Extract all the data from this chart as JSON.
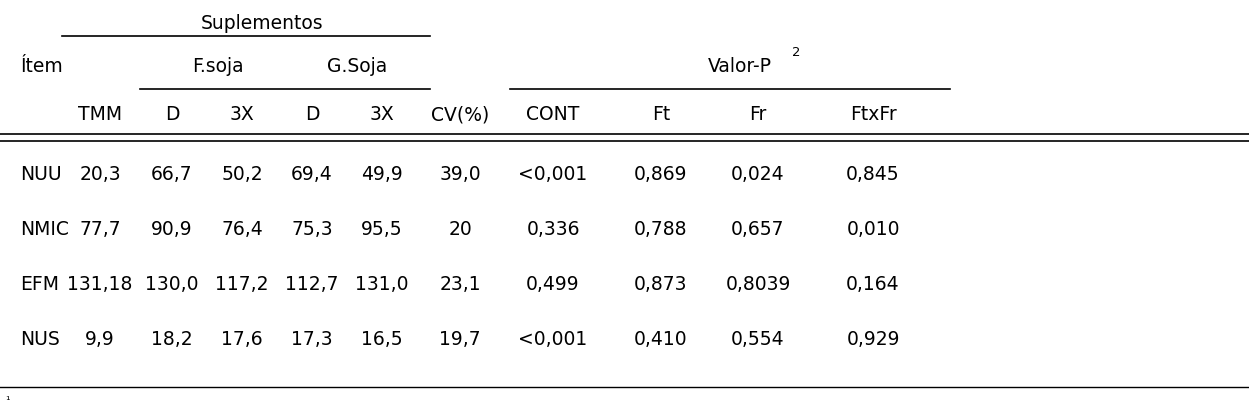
{
  "figsize": [
    12.49,
    4.02
  ],
  "dpi": 100,
  "header_row3": [
    "TMM",
    "D",
    "3X",
    "D",
    "3X",
    "CV(%)",
    "CONT",
    "Ft",
    "Fr",
    "FtxFr"
  ],
  "rows": [
    [
      "NUU",
      "20,3",
      "66,7",
      "50,2",
      "69,4",
      "49,9",
      "39,0",
      "<0,001",
      "0,869",
      "0,024",
      "0,845"
    ],
    [
      "NMIC",
      "77,7",
      "90,9",
      "76,4",
      "75,3",
      "95,5",
      "20",
      "0,336",
      "0,788",
      "0,657",
      "0,010"
    ],
    [
      "EFM",
      "131,18",
      "130,0",
      "117,2",
      "112,7",
      "131,0",
      "23,1",
      "0,499",
      "0,873",
      "0,8039",
      "0,164"
    ],
    [
      "NUS",
      "9,9",
      "18,2",
      "17,6",
      "17,3",
      "16,5",
      "19,7",
      "<0,001",
      "0,410",
      "0,554",
      "0,929"
    ]
  ],
  "line_color": "#000000",
  "text_color": "#000000",
  "bg_color": "#ffffff",
  "font_size": 13.5,
  "suplementos_label": "Suplementos",
  "fsoja_label": "F.soja",
  "gsoja_label": "G.Soja",
  "valorp_label": "Valor-P",
  "item_label": "Ítem",
  "footnote": "¹"
}
